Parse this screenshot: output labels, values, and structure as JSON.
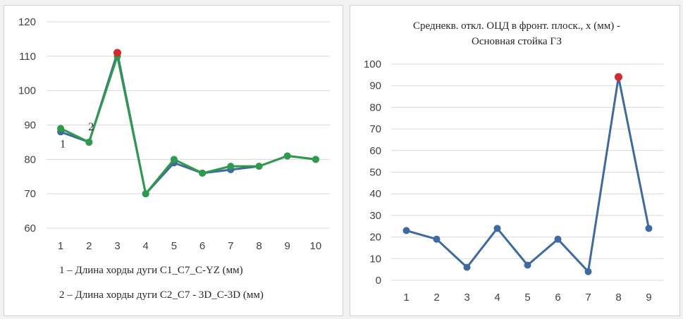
{
  "chart_data": [
    {
      "type": "line",
      "x": [
        1,
        2,
        3,
        4,
        5,
        6,
        7,
        8,
        9,
        10
      ],
      "ylim": [
        60,
        120
      ],
      "y_ticks": [
        60,
        70,
        80,
        90,
        100,
        110,
        120
      ],
      "grid": true,
      "series": [
        {
          "name": "1 – Длина хорды дуги C1_C7_C-YZ (мм)",
          "values": [
            88,
            85,
            111,
            70,
            79,
            76,
            77,
            78,
            81,
            80
          ],
          "color": "#3e6a9e"
        },
        {
          "name": "2 – Длина хорды дуги C2_C7 - 3D_C-3D  (мм)",
          "values": [
            89,
            85,
            110,
            70,
            80,
            76,
            78,
            78,
            81,
            80
          ],
          "color": "#2e9a4b"
        }
      ],
      "highlight": {
        "x": 3,
        "y": 111,
        "color": "#d42a2a"
      },
      "annotations": [
        {
          "text": "1",
          "x": 1,
          "y": 84.5
        },
        {
          "text": "2",
          "x": 2,
          "y": 89.5
        }
      ],
      "legend_placement": "bottom"
    },
    {
      "type": "line",
      "title": "Среднекв.  откл. ОЦД в фронт. плоск., x (мм) -",
      "subtitle": "Основная стойка ГЗ",
      "x": [
        1,
        2,
        3,
        4,
        5,
        6,
        7,
        8,
        9
      ],
      "ylim": [
        0,
        100
      ],
      "y_ticks": [
        0,
        10,
        20,
        30,
        40,
        50,
        60,
        70,
        80,
        90,
        100
      ],
      "grid": true,
      "series": [
        {
          "values": [
            23,
            19,
            6,
            24,
            7,
            19,
            4,
            94,
            24
          ],
          "color": "#3e6a9e"
        }
      ],
      "highlight": {
        "x": 8,
        "y": 94,
        "color": "#d42a2a"
      }
    }
  ]
}
